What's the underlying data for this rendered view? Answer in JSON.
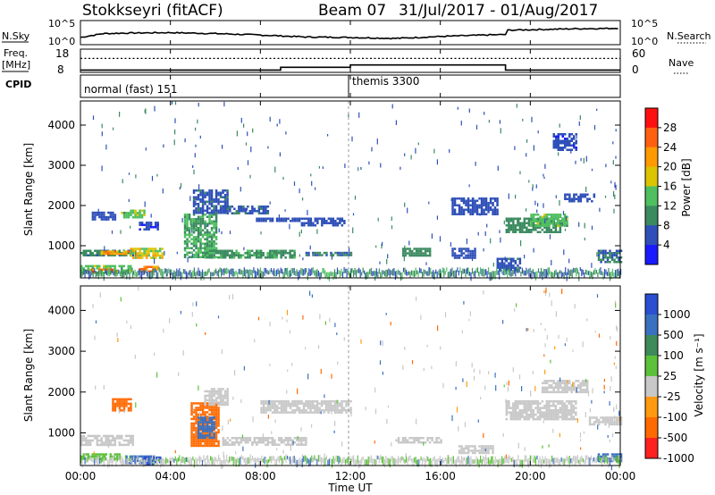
{
  "header": {
    "station": "Stokkseyri (fitACF)",
    "beam": "Beam 07",
    "dates": "31/Jul/2017 - 01/Aug/2017"
  },
  "summary": {
    "nsky_label": "N.Sky",
    "nsearch_label": "N.Search",
    "log_top_label": "10^5",
    "log_bottom_label": "10^0",
    "freq_label_line1": "Freq.",
    "freq_label_line2": "[MHz]",
    "freq_ticks": [
      "18",
      "8"
    ],
    "nave_label": "Nave",
    "nave_ticks": [
      "60",
      "0"
    ],
    "cpid_label": "CPID",
    "cpid_modes": [
      "normal (fast) 151",
      "themis 3300"
    ]
  },
  "axes": {
    "xlabel": "Time UT",
    "xticks": [
      "00:00",
      "04:00",
      "08:00",
      "12:00",
      "16:00",
      "20:00",
      "00:00"
    ],
    "ylabel": "Slant Range [km]",
    "yticks": [
      "1000",
      "2000",
      "3000",
      "4000"
    ]
  },
  "power_colorbar": {
    "label": "Power [dB]",
    "ticks": [
      "4",
      "8",
      "12",
      "16",
      "20",
      "24",
      "28"
    ],
    "colors": [
      "#1a1aff",
      "#2f50b8",
      "#3b8a60",
      "#4fbf60",
      "#dcc400",
      "#ff9a00",
      "#ff6010",
      "#ff1010"
    ]
  },
  "velocity_colorbar": {
    "label": "Velocity [m s-1]",
    "ticks": [
      "1000",
      "500",
      "100",
      "25",
      "-25",
      "-100",
      "-500",
      "-1000"
    ],
    "colors": [
      "#2a4fd0",
      "#3a70c0",
      "#3f8a5a",
      "#5cc13a",
      "#c8c8c8",
      "#ff9a10",
      "#ff6a00",
      "#ff2020"
    ]
  },
  "chart_data": [
    {
      "type": "line",
      "panel": "N.Sky / N.Search",
      "x_range_hours": [
        0,
        24
      ],
      "ylim_log10": [
        0,
        5
      ],
      "series": [
        {
          "name": "N.Sky",
          "x": [
            0,
            1,
            2,
            4,
            6,
            8,
            10,
            12,
            14,
            16,
            18,
            18.9,
            19,
            20,
            22,
            24
          ],
          "y_log10": [
            1.5,
            2.3,
            2.4,
            2.5,
            2.3,
            2.0,
            1.6,
            1.5,
            1.3,
            1.7,
            2.0,
            2.1,
            3.0,
            3.1,
            3.3,
            3.4
          ]
        },
        {
          "name": "N.Search",
          "x": [
            0,
            24
          ],
          "y_log10": [
            0,
            0
          ]
        }
      ]
    },
    {
      "type": "line",
      "panel": "Freq. [MHz] / Nave",
      "x_range_hours": [
        0,
        24
      ],
      "freq_ylim": [
        8,
        18
      ],
      "nave_ylim": [
        0,
        60
      ],
      "series": [
        {
          "name": "Freq.",
          "x": [
            0,
            8.9,
            8.9,
            12,
            12,
            18.9,
            18.9,
            24
          ],
          "y": [
            9,
            9,
            10.2,
            10.2,
            11.2,
            11.2,
            9,
            9
          ]
        },
        {
          "name": "Nave",
          "x": [
            0,
            24
          ],
          "y": [
            36,
            36
          ]
        }
      ]
    },
    {
      "type": "heatmap",
      "panel": "Power [dB]",
      "x_range_hours": [
        0,
        24
      ],
      "ylim": [
        200,
        4600
      ],
      "regions": [
        {
          "t": [
            0.0,
            2.3
          ],
          "r": [
            750,
            900
          ],
          "v": 9
        },
        {
          "t": [
            0.8,
            2.2
          ],
          "r": [
            780,
            880
          ],
          "v": 22
        },
        {
          "t": [
            0.0,
            2.2
          ],
          "r": [
            320,
            520
          ],
          "v": 14
        },
        {
          "t": [
            0.3,
            1.6
          ],
          "r": [
            330,
            430
          ],
          "v": 25
        },
        {
          "t": [
            0.5,
            1.5
          ],
          "r": [
            1650,
            1850
          ],
          "v": 6
        },
        {
          "t": [
            1.8,
            2.8
          ],
          "r": [
            1700,
            1900
          ],
          "v": 14
        },
        {
          "t": [
            2.2,
            3.6
          ],
          "r": [
            700,
            950
          ],
          "v": 18
        },
        {
          "t": [
            2.6,
            3.4
          ],
          "r": [
            350,
            500
          ],
          "v": 22
        },
        {
          "t": [
            2.6,
            3.4
          ],
          "r": [
            1400,
            1600
          ],
          "v": 5
        },
        {
          "t": [
            4.6,
            6.0
          ],
          "r": [
            700,
            1800
          ],
          "v": 12
        },
        {
          "t": [
            5.0,
            6.5
          ],
          "r": [
            1800,
            2400
          ],
          "v": 7
        },
        {
          "t": [
            6.3,
            8.3
          ],
          "r": [
            1800,
            2000
          ],
          "v": 7
        },
        {
          "t": [
            7.8,
            9.8
          ],
          "r": [
            1600,
            1700
          ],
          "v": 6
        },
        {
          "t": [
            9.8,
            11.7
          ],
          "r": [
            1500,
            1700
          ],
          "v": 6
        },
        {
          "t": [
            5.5,
            9.5
          ],
          "r": [
            700,
            900
          ],
          "v": 11
        },
        {
          "t": [
            10.0,
            12.0
          ],
          "r": [
            750,
            850
          ],
          "v": 8
        },
        {
          "t": [
            14.3,
            15.5
          ],
          "r": [
            780,
            950
          ],
          "v": 10
        },
        {
          "t": [
            16.5,
            18.5
          ],
          "r": [
            1800,
            2200
          ],
          "v": 6
        },
        {
          "t": [
            16.5,
            17.5
          ],
          "r": [
            700,
            950
          ],
          "v": 6
        },
        {
          "t": [
            18.9,
            21.4
          ],
          "r": [
            1350,
            1700
          ],
          "v": 10
        },
        {
          "t": [
            20.0,
            21.6
          ],
          "r": [
            1500,
            1800
          ],
          "v": 14
        },
        {
          "t": [
            21.5,
            22.8
          ],
          "r": [
            2100,
            2300
          ],
          "v": 6
        },
        {
          "t": [
            18.5,
            19.5
          ],
          "r": [
            400,
            700
          ],
          "v": 7
        },
        {
          "t": [
            23.0,
            24.0
          ],
          "r": [
            600,
            900
          ],
          "v": 8
        },
        {
          "t": [
            21.0,
            22.0
          ],
          "r": [
            3400,
            3800
          ],
          "v": 5
        }
      ]
    },
    {
      "type": "heatmap",
      "panel": "Velocity [m s-1]",
      "x_range_hours": [
        0,
        24
      ],
      "ylim": [
        200,
        4600
      ],
      "regions": [
        {
          "t": [
            0.0,
            2.3
          ],
          "r": [
            700,
            950
          ],
          "v": 0
        },
        {
          "t": [
            0.0,
            1.7
          ],
          "r": [
            350,
            500
          ],
          "v": 40
        },
        {
          "t": [
            1.4,
            2.2
          ],
          "r": [
            1550,
            1850
          ],
          "v": -150
        },
        {
          "t": [
            2.0,
            3.2
          ],
          "r": [
            250,
            450
          ],
          "v": 120
        },
        {
          "t": [
            2.8,
            3.5
          ],
          "r": [
            250,
            420
          ],
          "v": 700
        },
        {
          "t": [
            4.9,
            6.1
          ],
          "r": [
            700,
            1750
          ],
          "v": -200
        },
        {
          "t": [
            5.2,
            5.9
          ],
          "r": [
            900,
            1400
          ],
          "v": 300
        },
        {
          "t": [
            5.5,
            6.5
          ],
          "r": [
            1700,
            2100
          ],
          "v": 0
        },
        {
          "t": [
            6.3,
            10.0
          ],
          "r": [
            700,
            900
          ],
          "v": 0
        },
        {
          "t": [
            8.0,
            12.0
          ],
          "r": [
            1500,
            1800
          ],
          "v": 0
        },
        {
          "t": [
            14.0,
            16.0
          ],
          "r": [
            780,
            900
          ],
          "v": 0
        },
        {
          "t": [
            16.8,
            18.3
          ],
          "r": [
            500,
            700
          ],
          "v": 0
        },
        {
          "t": [
            18.9,
            22.0
          ],
          "r": [
            1350,
            1800
          ],
          "v": 0
        },
        {
          "t": [
            20.5,
            22.5
          ],
          "r": [
            2000,
            2300
          ],
          "v": 0
        },
        {
          "t": [
            22.6,
            24.0
          ],
          "r": [
            1200,
            1400
          ],
          "v": 0
        },
        {
          "t": [
            23.0,
            24.0
          ],
          "r": [
            300,
            500
          ],
          "v": 120
        }
      ]
    }
  ]
}
